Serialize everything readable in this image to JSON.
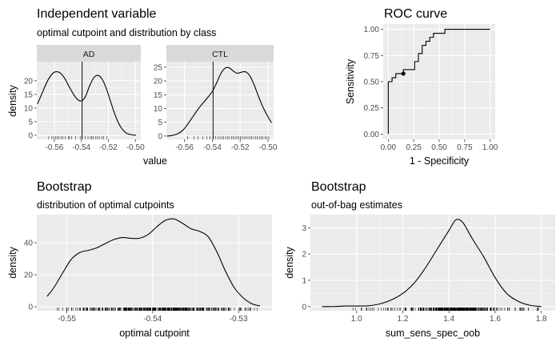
{
  "chart_data": [
    {
      "id": "independent",
      "type": "area",
      "title": "Independent variable",
      "subtitle": "optimal cutpoint and distribution by class",
      "xlabel": "value",
      "ylabel": "density",
      "facets": [
        {
          "strip": "AD",
          "xlim": [
            -0.573,
            -0.496
          ],
          "ylim": [
            -1.5,
            27
          ],
          "xticks": [
            -0.56,
            -0.54,
            -0.52,
            -0.5
          ],
          "xtick_labels": [
            "-0.56",
            "-0.54",
            "-0.52",
            "-0.50"
          ],
          "yticks": [
            0,
            5,
            10,
            15,
            20
          ],
          "ytick_labels": [
            "0",
            "5",
            "10",
            "15",
            "20"
          ],
          "cutpoint": -0.5395,
          "density": {
            "x": [
              -0.5725,
              -0.569,
              -0.565,
              -0.561,
              -0.558,
              -0.555,
              -0.552,
              -0.549,
              -0.546,
              -0.543,
              -0.54,
              -0.537,
              -0.534,
              -0.531,
              -0.528,
              -0.525,
              -0.522,
              -0.519,
              -0.516,
              -0.513,
              -0.51,
              -0.507,
              -0.504,
              -0.501,
              -0.4995
            ],
            "y": [
              11.5,
              15.5,
              20.0,
              22.8,
              23.3,
              22.6,
              20.6,
              17.8,
              15.2,
              13.2,
              12.6,
              14.2,
              18.0,
              21.0,
              22.0,
              20.9,
              17.8,
              13.4,
              8.8,
              5.0,
              2.4,
              0.9,
              0.3,
              0.05,
              0.0
            ]
          },
          "rug": [
            -0.5642,
            -0.5618,
            -0.5605,
            -0.5591,
            -0.5578,
            -0.5566,
            -0.5551,
            -0.5539,
            -0.5518,
            -0.5497,
            -0.5488,
            -0.5472,
            -0.5443,
            -0.5409,
            -0.5396,
            -0.5372,
            -0.5351,
            -0.5333,
            -0.5322,
            -0.5311,
            -0.5296,
            -0.5281,
            -0.5268,
            -0.5249,
            -0.5236,
            -0.5213
          ]
        },
        {
          "strip": "CTL",
          "xlim": [
            -0.573,
            -0.496
          ],
          "ylim": [
            -1.2,
            27
          ],
          "xticks": [
            -0.56,
            -0.54,
            -0.52,
            -0.5
          ],
          "xtick_labels": [
            "-0.56",
            "-0.54",
            "-0.52",
            "-0.50"
          ],
          "yticks": [
            0,
            5,
            10,
            15,
            20,
            25
          ],
          "ytick_labels": [
            "0",
            "5",
            "10",
            "15",
            "20",
            "25"
          ],
          "cutpoint": -0.5395,
          "density": {
            "x": [
              -0.5725,
              -0.569,
              -0.565,
              -0.561,
              -0.558,
              -0.555,
              -0.552,
              -0.549,
              -0.546,
              -0.543,
              -0.54,
              -0.537,
              -0.534,
              -0.531,
              -0.528,
              -0.525,
              -0.522,
              -0.519,
              -0.516,
              -0.513,
              -0.51,
              -0.507,
              -0.504,
              -0.501,
              -0.4975
            ],
            "y": [
              0.0,
              0.2,
              0.8,
              2.2,
              4.1,
              6.3,
              8.5,
              10.6,
              12.4,
              14.2,
              16.2,
              19.2,
              22.6,
              24.6,
              24.8,
              23.6,
              22.8,
              23.2,
              23.3,
              21.8,
              18.6,
              14.6,
              10.9,
              7.9,
              4.8
            ]
          },
          "rug": [
            -0.5577,
            -0.5533,
            -0.5502,
            -0.5468,
            -0.5441,
            -0.5416,
            -0.5394,
            -0.5378,
            -0.5361,
            -0.5345,
            -0.5332,
            -0.5318,
            -0.5304,
            -0.529,
            -0.5277,
            -0.5263,
            -0.5249,
            -0.5236,
            -0.5224,
            -0.5212,
            -0.5198,
            -0.5185,
            -0.5172,
            -0.5158,
            -0.5144,
            -0.5131,
            -0.5118,
            -0.5104,
            -0.5091,
            -0.5077,
            -0.5063,
            -0.5049,
            -0.5036,
            -0.5022,
            -0.5008,
            -0.4995
          ]
        }
      ]
    },
    {
      "id": "roc",
      "type": "line",
      "title": "ROC curve",
      "xlabel": "1 - Specificity",
      "ylabel": "Sensitivity",
      "xlim": [
        -0.05,
        1.05
      ],
      "ylim": [
        -0.05,
        1.05
      ],
      "xticks": [
        0,
        0.25,
        0.5,
        0.75,
        1
      ],
      "xtick_labels": [
        "0.00",
        "0.25",
        "0.50",
        "0.75",
        "1.00"
      ],
      "yticks": [
        0,
        0.25,
        0.5,
        0.75,
        1
      ],
      "ytick_labels": [
        "0.00",
        "0.25",
        "0.50",
        "0.75",
        "1.00"
      ],
      "optimal_point": {
        "x": 0.148,
        "y": 0.577
      },
      "roc": {
        "fpr": [
          0,
          0,
          0,
          0.037,
          0.037,
          0.074,
          0.074,
          0.148,
          0.148,
          0.259,
          0.259,
          0.296,
          0.296,
          0.333,
          0.333,
          0.37,
          0.37,
          0.407,
          0.407,
          0.444,
          0.444,
          0.519,
          0.519,
          0.556,
          0.556,
          0.593,
          0.593,
          1.0
        ],
        "tpr": [
          0,
          0.346,
          0.5,
          0.5,
          0.538,
          0.538,
          0.577,
          0.577,
          0.615,
          0.615,
          0.692,
          0.692,
          0.769,
          0.769,
          0.846,
          0.846,
          0.885,
          0.885,
          0.923,
          0.923,
          0.962,
          0.962,
          0.962,
          0.962,
          1.0,
          1.0,
          1.0,
          1.0
        ]
      }
    },
    {
      "id": "bootstrap-cutpoints",
      "type": "area",
      "title": "Bootstrap",
      "subtitle": "distribution of optimal cutpoints",
      "xlabel": "optimal cutpoint",
      "ylabel": "density",
      "xlim": [
        -0.5535,
        -0.5261
      ],
      "ylim": [
        -2.5,
        57.5
      ],
      "xticks": [
        -0.55,
        -0.54,
        -0.53
      ],
      "xtick_labels": [
        "-0.55",
        "-0.54",
        "-0.53"
      ],
      "yticks": [
        0,
        20,
        40
      ],
      "ytick_labels": [
        "0",
        "20",
        "40"
      ],
      "density": {
        "x": [
          -0.5523,
          -0.5515,
          -0.5505,
          -0.5495,
          -0.5485,
          -0.5475,
          -0.5465,
          -0.5455,
          -0.5445,
          -0.5435,
          -0.5425,
          -0.5415,
          -0.5405,
          -0.5395,
          -0.5385,
          -0.5375,
          -0.5365,
          -0.5355,
          -0.5345,
          -0.5335,
          -0.5325,
          -0.5315,
          -0.5305,
          -0.5295,
          -0.5285,
          -0.5275
        ],
        "y": [
          6.5,
          12.0,
          21.0,
          29.5,
          33.8,
          35.2,
          36.8,
          39.5,
          42.0,
          43.2,
          42.7,
          42.8,
          45.2,
          50.0,
          54.0,
          54.8,
          52.0,
          48.6,
          47.0,
          43.5,
          34.0,
          22.0,
          12.0,
          5.8,
          2.0,
          0.5
        ]
      },
      "rug_range": [
        -0.5512,
        -0.5277
      ]
    },
    {
      "id": "bootstrap-oob",
      "type": "area",
      "title": "Bootstrap",
      "subtitle": "out-of-bag estimates",
      "xlabel": "sum_sens_spec_oob",
      "ylabel": "density",
      "xlim": [
        0.8,
        1.86
      ],
      "ylim": [
        -0.16,
        3.5
      ],
      "xticks": [
        1.0,
        1.2,
        1.4,
        1.6,
        1.8
      ],
      "xtick_labels": [
        "1.0",
        "1.2",
        "1.4",
        "1.6",
        "1.8"
      ],
      "yticks": [
        0,
        1,
        2,
        3
      ],
      "ytick_labels": [
        "0",
        "1",
        "2",
        "3"
      ],
      "density": {
        "x": [
          0.85,
          0.9,
          0.95,
          1.0,
          1.05,
          1.1,
          1.15,
          1.2,
          1.25,
          1.3,
          1.35,
          1.4,
          1.43,
          1.46,
          1.5,
          1.55,
          1.6,
          1.65,
          1.7,
          1.75,
          1.8
        ],
        "y": [
          0.0,
          0.0,
          0.02,
          0.02,
          0.03,
          0.1,
          0.25,
          0.5,
          0.9,
          1.5,
          2.2,
          2.9,
          3.3,
          3.2,
          2.6,
          1.9,
          1.1,
          0.5,
          0.2,
          0.05,
          0.0
        ]
      },
      "rug_range": [
        0.97,
        1.79
      ]
    }
  ]
}
